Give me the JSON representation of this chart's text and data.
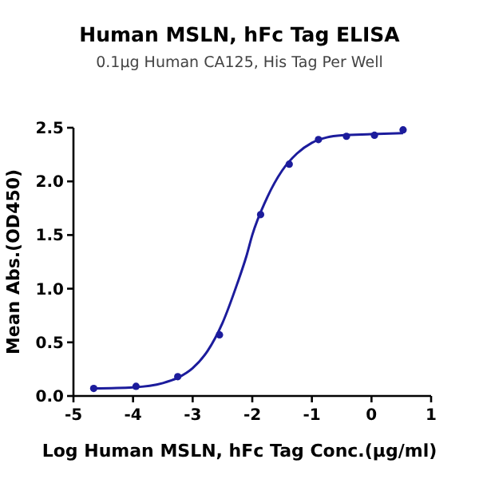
{
  "chart_data": {
    "type": "scatter",
    "title": "Human MSLN, hFc Tag ELISA",
    "subtitle": "0.1μg Human CA125, His Tag Per Well",
    "xlabel": "Log Human MSLN, hFc Tag Conc.(μg/ml)",
    "ylabel": "Mean Abs.(OD450)",
    "xlim": [
      -5,
      1
    ],
    "xticks": [
      -5,
      -4,
      -3,
      -2,
      -1,
      0,
      1
    ],
    "ylim": [
      0,
      2.5
    ],
    "yticks": [
      {
        "value": 0,
        "label": "0.0"
      },
      {
        "value": 0.5,
        "label": "0.5"
      },
      {
        "value": 1,
        "label": "1.0"
      },
      {
        "value": 1.5,
        "label": "1.5"
      },
      {
        "value": 2,
        "label": "2.0"
      },
      {
        "value": 2.5,
        "label": "2.5"
      }
    ],
    "grid": false,
    "series": [
      {
        "marker": "circle",
        "color": "#1c1c9c",
        "x": [
          -4.66,
          -3.95,
          -3.25,
          -2.55,
          -1.86,
          -1.38,
          -0.89,
          -0.42,
          0.05,
          0.53
        ],
        "values": [
          0.07,
          0.09,
          0.18,
          0.57,
          1.69,
          2.16,
          2.39,
          2.42,
          2.43,
          2.48
        ]
      },
      {
        "type": "line",
        "marker": "none",
        "color": "#1c1c9c",
        "line_style": "solid",
        "x": [
          -4.66,
          -4,
          -3.5,
          -3.25,
          -3,
          -2.75,
          -2.5,
          -2.25,
          -2.1,
          -2,
          -1.75,
          -1.5,
          -1.25,
          -1,
          -0.75,
          -0.5,
          0,
          0.53
        ],
        "values": [
          0.07,
          0.08,
          0.12,
          0.17,
          0.26,
          0.42,
          0.68,
          1.05,
          1.3,
          1.5,
          1.85,
          2.1,
          2.26,
          2.36,
          2.41,
          2.43,
          2.44,
          2.45
        ]
      }
    ]
  }
}
